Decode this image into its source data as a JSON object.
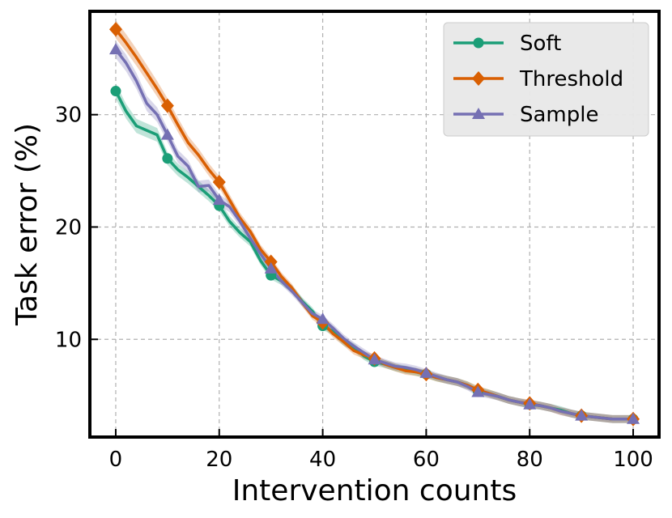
{
  "chart_data": {
    "type": "line",
    "xlabel": "Intervention counts",
    "ylabel": "Task error (%)",
    "xlim": [
      -5,
      105
    ],
    "ylim": [
      1.3,
      39.2
    ],
    "xticks": [
      0,
      20,
      40,
      60,
      80,
      100
    ],
    "yticks": [
      10,
      20,
      30
    ],
    "grid": true,
    "legend_position": "top-right",
    "series": [
      {
        "name": "Soft",
        "color": "#1b9e77",
        "marker": "circle",
        "x": [
          0,
          2,
          4,
          6,
          8,
          10,
          12,
          14,
          16,
          18,
          20,
          22,
          24,
          26,
          28,
          30,
          32,
          34,
          36,
          38,
          40,
          42,
          44,
          46,
          48,
          50,
          52,
          54,
          56,
          58,
          60,
          62,
          64,
          66,
          68,
          70,
          72,
          74,
          76,
          78,
          80,
          82,
          84,
          86,
          88,
          90,
          92,
          94,
          96,
          98,
          100
        ],
        "y": [
          32.1,
          30.3,
          29.0,
          28.6,
          28.2,
          26.1,
          25.1,
          24.4,
          23.6,
          22.8,
          21.9,
          20.5,
          19.5,
          18.7,
          17.0,
          15.7,
          15.2,
          14.5,
          13.4,
          12.5,
          11.2,
          10.7,
          9.8,
          9.3,
          8.5,
          8.0,
          7.8,
          7.5,
          7.3,
          7.1,
          6.9,
          6.6,
          6.4,
          6.2,
          5.9,
          5.4,
          5.2,
          4.9,
          4.6,
          4.4,
          4.2,
          4.1,
          3.9,
          3.7,
          3.4,
          3.2,
          3.1,
          3.0,
          2.9,
          2.9,
          2.9
        ],
        "marker_x": [
          0,
          10,
          20,
          30,
          40,
          50,
          60,
          70,
          80,
          90,
          100
        ],
        "marker_y": [
          32.1,
          26.1,
          21.9,
          15.7,
          11.2,
          8.0,
          6.9,
          5.4,
          4.2,
          3.2,
          2.9
        ]
      },
      {
        "name": "Threshold",
        "color": "#d95f02",
        "marker": "diamond",
        "x": [
          0,
          2,
          4,
          6,
          8,
          10,
          12,
          14,
          16,
          18,
          20,
          22,
          24,
          26,
          28,
          30,
          32,
          34,
          36,
          38,
          40,
          42,
          44,
          46,
          48,
          50,
          52,
          54,
          56,
          58,
          60,
          62,
          64,
          66,
          68,
          70,
          72,
          74,
          76,
          78,
          80,
          82,
          84,
          86,
          88,
          90,
          92,
          94,
          96,
          98,
          100
        ],
        "y": [
          37.6,
          36.4,
          35.1,
          33.7,
          32.3,
          30.8,
          29.1,
          27.5,
          26.4,
          25.1,
          24.0,
          22.4,
          20.8,
          19.6,
          18.0,
          16.9,
          15.6,
          14.6,
          13.3,
          12.1,
          11.5,
          10.5,
          9.8,
          9.0,
          8.6,
          8.3,
          7.8,
          7.5,
          7.2,
          7.1,
          6.9,
          6.6,
          6.4,
          6.2,
          5.9,
          5.5,
          5.2,
          4.9,
          4.6,
          4.4,
          4.3,
          4.1,
          3.9,
          3.6,
          3.4,
          3.2,
          3.1,
          3.0,
          2.9,
          2.9,
          2.9
        ],
        "marker_x": [
          0,
          10,
          20,
          30,
          40,
          50,
          60,
          70,
          80,
          90,
          100
        ],
        "marker_y": [
          37.6,
          30.8,
          24.0,
          16.9,
          11.5,
          8.3,
          6.9,
          5.5,
          4.3,
          3.2,
          2.9
        ]
      },
      {
        "name": "Sample",
        "color": "#7570b3",
        "marker": "triangle",
        "x": [
          0,
          2,
          4,
          6,
          8,
          10,
          12,
          14,
          16,
          18,
          20,
          22,
          24,
          26,
          28,
          30,
          32,
          34,
          36,
          38,
          40,
          42,
          44,
          46,
          48,
          50,
          52,
          54,
          56,
          58,
          60,
          62,
          64,
          66,
          68,
          70,
          72,
          74,
          76,
          78,
          80,
          82,
          84,
          86,
          88,
          90,
          92,
          94,
          96,
          98,
          100
        ],
        "y": [
          35.8,
          34.6,
          33.0,
          31.0,
          30.0,
          28.2,
          26.3,
          25.4,
          23.6,
          23.7,
          22.4,
          21.8,
          20.5,
          19.0,
          17.6,
          16.3,
          15.2,
          14.3,
          13.3,
          12.3,
          11.8,
          11.0,
          10.1,
          9.4,
          8.8,
          8.2,
          7.9,
          7.6,
          7.5,
          7.3,
          7.0,
          6.7,
          6.4,
          6.2,
          5.8,
          5.3,
          5.1,
          4.9,
          4.6,
          4.4,
          4.2,
          4.1,
          3.9,
          3.6,
          3.4,
          3.2,
          3.1,
          3.0,
          2.9,
          2.9,
          2.9
        ],
        "marker_x": [
          0,
          10,
          20,
          30,
          40,
          50,
          60,
          70,
          80,
          90,
          100
        ],
        "marker_y": [
          35.8,
          28.2,
          22.4,
          16.3,
          11.8,
          8.2,
          7.0,
          5.3,
          4.2,
          3.2,
          2.9
        ]
      }
    ]
  }
}
